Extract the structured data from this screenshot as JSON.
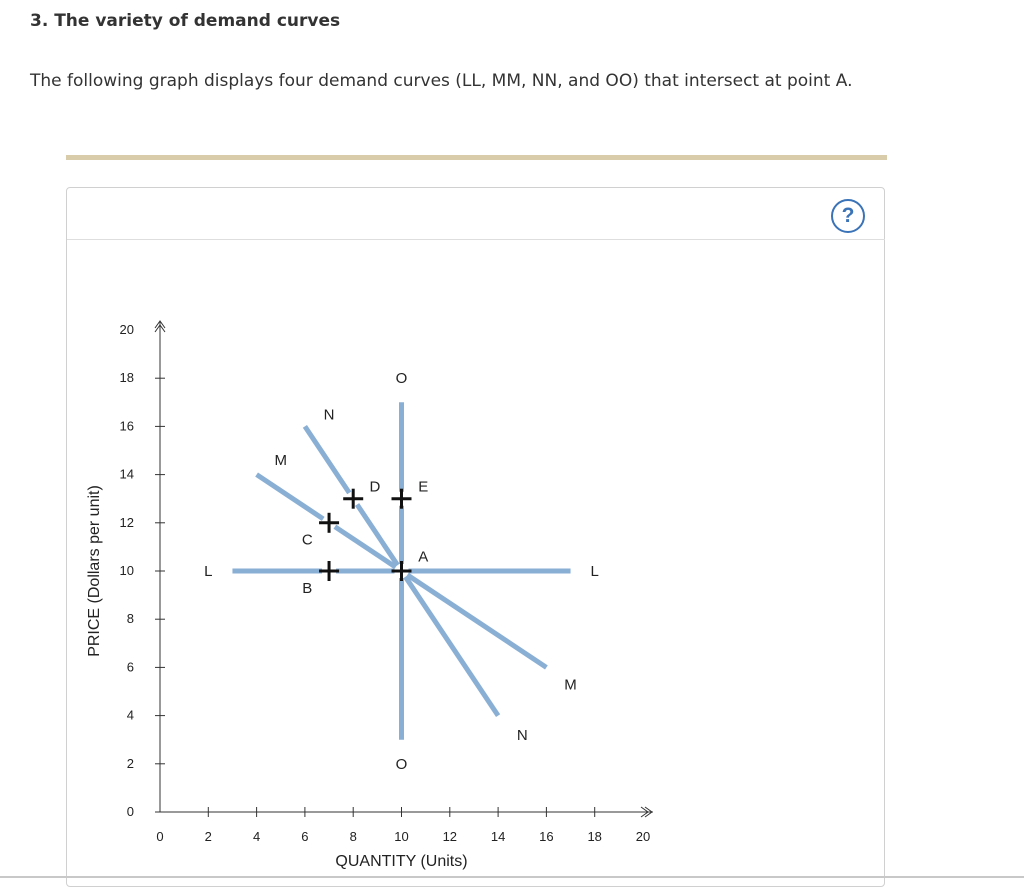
{
  "page": {
    "heading": "3. The variety of demand curves",
    "intro": "The following graph displays four demand curves (LL, MM, NN, and OO) that intersect at point A.",
    "help_label": "?"
  },
  "colors": {
    "curve": "#8aafd4",
    "point": "#111111",
    "axis": "#333333",
    "accent_bar": "#d9ccaa",
    "help": "#3a73b8"
  },
  "chart_data": {
    "type": "line",
    "xlabel": "QUANTITY (Units)",
    "ylabel": "PRICE (Dollars per unit)",
    "xlim": [
      0,
      20
    ],
    "ylim": [
      0,
      20
    ],
    "x_ticks": [
      0,
      2,
      4,
      6,
      8,
      10,
      12,
      14,
      16,
      18,
      20
    ],
    "y_ticks": [
      0,
      2,
      4,
      6,
      8,
      10,
      12,
      14,
      16,
      18,
      20
    ],
    "grid": false,
    "series": [
      {
        "name": "L",
        "segments": [
          [
            [
              3,
              10
            ],
            [
              7,
              10
            ]
          ],
          [
            [
              7,
              10
            ],
            [
              10,
              10
            ]
          ],
          [
            [
              10,
              10
            ],
            [
              17,
              10
            ]
          ]
        ],
        "labels": [
          {
            "text": "L",
            "x": 2,
            "y": 10
          },
          {
            "text": "L",
            "x": 18,
            "y": 10
          }
        ]
      },
      {
        "name": "M",
        "segments": [
          [
            [
              4,
              14
            ],
            [
              7,
              12
            ]
          ],
          [
            [
              7,
              12
            ],
            [
              10,
              10
            ]
          ],
          [
            [
              10,
              10
            ],
            [
              16,
              6
            ]
          ]
        ],
        "labels": [
          {
            "text": "M",
            "x": 5,
            "y": 14.6
          },
          {
            "text": "M",
            "x": 17,
            "y": 5.3
          }
        ]
      },
      {
        "name": "N",
        "segments": [
          [
            [
              6,
              16
            ],
            [
              8,
              13
            ]
          ],
          [
            [
              8,
              13
            ],
            [
              10,
              10
            ]
          ],
          [
            [
              10,
              10
            ],
            [
              14,
              4
            ]
          ]
        ],
        "labels": [
          {
            "text": "N",
            "x": 7,
            "y": 16.5
          },
          {
            "text": "N",
            "x": 15,
            "y": 3.2
          }
        ]
      },
      {
        "name": "O",
        "segments": [
          [
            [
              10,
              17
            ],
            [
              10,
              13
            ]
          ],
          [
            [
              10,
              13
            ],
            [
              10,
              10
            ]
          ],
          [
            [
              10,
              10
            ],
            [
              10,
              3
            ]
          ]
        ],
        "labels": [
          {
            "text": "O",
            "x": 10,
            "y": 18
          },
          {
            "text": "O",
            "x": 10,
            "y": 2
          }
        ]
      }
    ],
    "points": [
      {
        "label": "A",
        "x": 10,
        "y": 10,
        "label_dx": 0.9,
        "label_dy": 0.6
      },
      {
        "label": "B",
        "x": 7,
        "y": 10,
        "label_dx": -0.9,
        "label_dy": -0.7
      },
      {
        "label": "C",
        "x": 7,
        "y": 12,
        "label_dx": -0.9,
        "label_dy": -0.7
      },
      {
        "label": "D",
        "x": 8,
        "y": 13,
        "label_dx": 0.9,
        "label_dy": 0.5
      },
      {
        "label": "E",
        "x": 10,
        "y": 13,
        "label_dx": 0.9,
        "label_dy": 0.5
      }
    ]
  }
}
